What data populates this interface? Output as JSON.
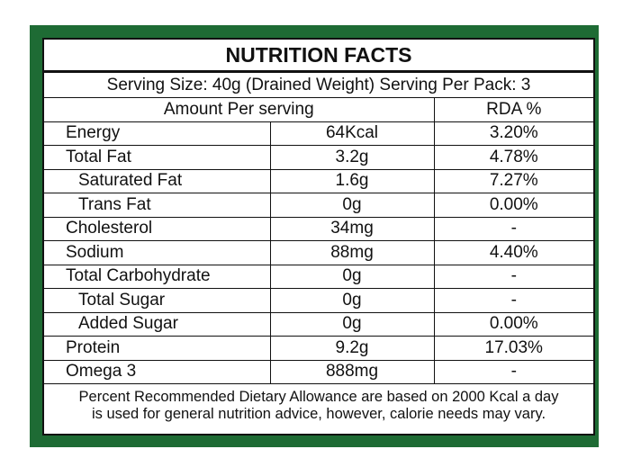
{
  "title": "NUTRITION FACTS",
  "serving": "Serving Size: 40g (Drained Weight) Serving Per Pack: 3",
  "header": [
    "Amount Per serving",
    "RDA %"
  ],
  "rows": [
    [
      "Energy",
      "64Kcal",
      "3.20%"
    ],
    [
      "Total Fat",
      "3.2g",
      "4.78%"
    ],
    [
      "Saturated Fat",
      "1.6g",
      "7.27%"
    ],
    [
      "Trans Fat",
      "0g",
      "0.00%"
    ],
    [
      "Cholesterol",
      "34mg",
      "-"
    ],
    [
      "Sodium",
      "88mg",
      "4.40%"
    ],
    [
      "Total Carbohydrate",
      "0g",
      "-"
    ],
    [
      "Total Sugar",
      "0g",
      "-"
    ],
    [
      "Added Sugar",
      "0g",
      "0.00%"
    ],
    [
      "Protein",
      "9.2g",
      "17.03%"
    ],
    [
      "Omega 3",
      "888mg",
      "-"
    ]
  ],
  "footer": [
    "Percent Recommended Dietary Allowance are based on 2000 Kcal a day",
    "is used for general nutrition advice, however, calorie needs may vary."
  ]
}
